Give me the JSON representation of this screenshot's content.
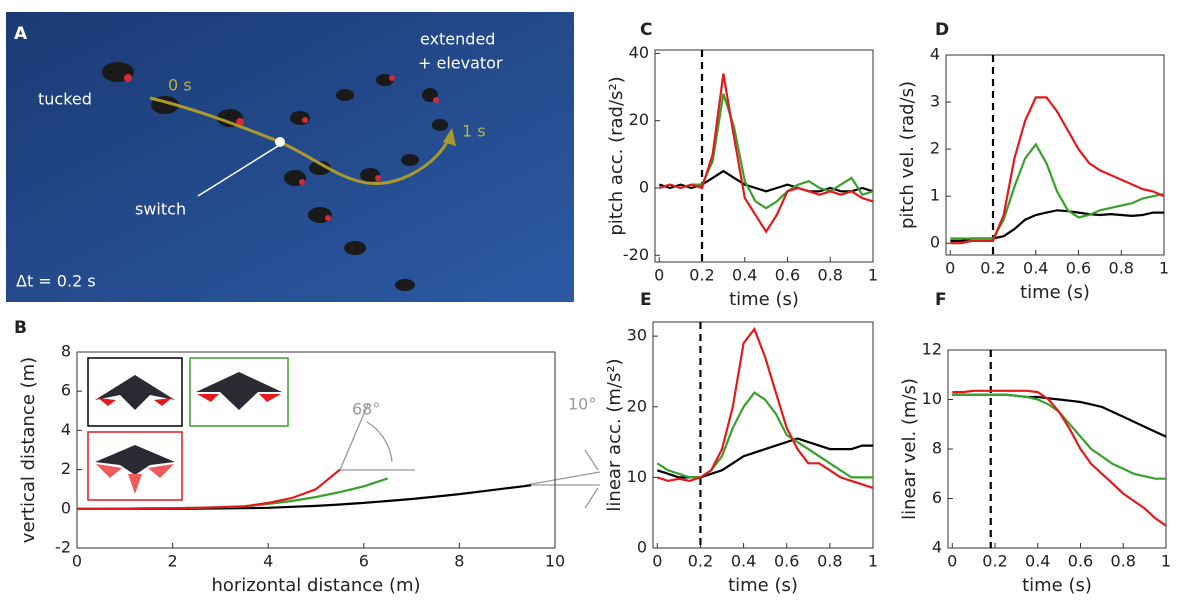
{
  "photo": {
    "label": "A",
    "tucked": "tucked",
    "start": "0 s",
    "end": "1 s",
    "extended": [
      "extended",
      "+ elevator"
    ],
    "switch": "switch",
    "interval": "Δt = 0.2 s"
  },
  "chart_data": [
    {
      "type": "line",
      "label": "B",
      "xlabel": "horizontal distance (m)",
      "ylabel": "vertical distance (m)",
      "x": [
        0,
        0.5,
        1,
        1.5,
        2,
        2.5,
        3,
        3.5,
        4,
        4.5,
        5,
        5.5,
        6,
        6.5,
        7,
        7.5,
        8,
        8.5,
        9,
        9.5
      ],
      "series": [
        {
          "color": "#000000",
          "values": [
            0,
            0,
            0,
            0,
            0,
            0.01,
            0.02,
            0.03,
            0.05,
            0.1,
            0.15,
            0.22,
            0.3,
            0.4,
            0.5,
            0.62,
            0.75,
            0.9,
            1.05,
            1.2
          ]
        },
        {
          "color": "#3aa02c",
          "values": [
            0,
            0,
            0.01,
            0.02,
            0.03,
            0.05,
            0.08,
            0.12,
            0.25,
            0.4,
            0.6,
            0.85,
            1.15,
            1.55,
            null,
            null,
            null,
            null,
            null,
            null
          ]
        },
        {
          "color": "#e31a1c",
          "values": [
            0,
            0,
            0.01,
            0.02,
            0.03,
            0.05,
            0.08,
            0.12,
            0.3,
            0.55,
            1.0,
            2.0,
            null,
            null,
            null,
            null,
            null,
            null,
            null,
            null
          ]
        }
      ],
      "xlim": [
        0,
        10
      ],
      "xticks": [
        0,
        2,
        4,
        6,
        8,
        10
      ],
      "ylim": [
        -2,
        8
      ],
      "yticks": [
        -2,
        0,
        2,
        4,
        6,
        8
      ],
      "annotations": [
        "68°",
        "10°"
      ]
    },
    {
      "type": "line",
      "label": "C",
      "xlabel": "time (s)",
      "ylabel": "pitch acc. (rad/s²)",
      "x": [
        0,
        0.05,
        0.1,
        0.15,
        0.2,
        0.25,
        0.3,
        0.35,
        0.4,
        0.45,
        0.5,
        0.55,
        0.6,
        0.65,
        0.7,
        0.75,
        0.8,
        0.85,
        0.9,
        0.95,
        1
      ],
      "series": [
        {
          "color": "#000000",
          "values": [
            1,
            0,
            1,
            0,
            1,
            3,
            5,
            3,
            1,
            0,
            -1,
            0,
            1,
            0,
            -1,
            -1,
            0,
            -1,
            -1,
            0,
            -1
          ]
        },
        {
          "color": "#3aa02c",
          "values": [
            0,
            1,
            0,
            1,
            1,
            8,
            28,
            18,
            2,
            -4,
            -6,
            -4,
            -1,
            1,
            2,
            0,
            -1,
            1,
            3,
            -2,
            -1
          ]
        },
        {
          "color": "#e31a1c",
          "values": [
            0,
            1,
            0,
            1,
            0,
            10,
            34,
            15,
            -3,
            -8,
            -13,
            -8,
            -1,
            0,
            -1,
            -2,
            -1,
            -2,
            -1,
            -3,
            -4
          ]
        }
      ],
      "xlim": [
        -0.02,
        1
      ],
      "xticks": [
        0,
        0.2,
        0.4,
        0.6,
        0.8,
        1
      ],
      "ylim": [
        -22,
        41
      ],
      "yticks": [
        -20,
        0,
        20,
        40
      ],
      "vline": 0.2
    },
    {
      "type": "line",
      "label": "D",
      "xlabel": "time (s)",
      "ylabel": "pitch vel.  (rad/s)",
      "x": [
        0,
        0.05,
        0.1,
        0.15,
        0.2,
        0.25,
        0.3,
        0.35,
        0.4,
        0.45,
        0.5,
        0.55,
        0.6,
        0.65,
        0.7,
        0.75,
        0.8,
        0.85,
        0.9,
        0.95,
        1
      ],
      "series": [
        {
          "color": "#000000",
          "values": [
            0.05,
            0.05,
            0.1,
            0.1,
            0.1,
            0.15,
            0.3,
            0.5,
            0.6,
            0.65,
            0.7,
            0.68,
            0.65,
            0.62,
            0.6,
            0.62,
            0.6,
            0.58,
            0.6,
            0.65,
            0.65
          ]
        },
        {
          "color": "#3aa02c",
          "values": [
            0.1,
            0.1,
            0.1,
            0.1,
            0.1,
            0.5,
            1.2,
            1.8,
            2.1,
            1.7,
            1.1,
            0.7,
            0.55,
            0.6,
            0.7,
            0.75,
            0.8,
            0.85,
            0.95,
            1.0,
            1.05
          ]
        },
        {
          "color": "#e31a1c",
          "values": [
            0,
            0,
            0.05,
            0.05,
            0.05,
            0.6,
            1.8,
            2.6,
            3.1,
            3.1,
            2.8,
            2.4,
            2.0,
            1.7,
            1.55,
            1.45,
            1.35,
            1.25,
            1.15,
            1.1,
            1.0
          ]
        }
      ],
      "xlim": [
        -0.02,
        1
      ],
      "xticks": [
        0,
        0.2,
        0.4,
        0.6,
        0.8,
        1
      ],
      "ylim": [
        -0.25,
        4
      ],
      "yticks": [
        0,
        1,
        2,
        3,
        4
      ],
      "vline": 0.2
    },
    {
      "type": "line",
      "label": "E",
      "xlabel": "time (s)",
      "ylabel": "linear acc. (m/s²)",
      "x": [
        0,
        0.05,
        0.1,
        0.15,
        0.2,
        0.25,
        0.3,
        0.35,
        0.4,
        0.45,
        0.5,
        0.55,
        0.6,
        0.65,
        0.7,
        0.75,
        0.8,
        0.85,
        0.9,
        0.95,
        1
      ],
      "series": [
        {
          "color": "#000000",
          "values": [
            11,
            10.5,
            10,
            10,
            10,
            10.5,
            11,
            12,
            13,
            13.5,
            14,
            14.5,
            15,
            15.5,
            15,
            14.5,
            14,
            14,
            14,
            14.5,
            14.5
          ]
        },
        {
          "color": "#3aa02c",
          "values": [
            12,
            11,
            10.5,
            10,
            10,
            11,
            13,
            17,
            20,
            22,
            21,
            19,
            16,
            15,
            14,
            13,
            12,
            11,
            10,
            10,
            10
          ]
        },
        {
          "color": "#e31a1c",
          "values": [
            10,
            9.5,
            9.8,
            9.5,
            10,
            11,
            14,
            20,
            29,
            31,
            27,
            22,
            17,
            14,
            12,
            12,
            11,
            10,
            9.5,
            9,
            8.5
          ]
        }
      ],
      "xlim": [
        -0.02,
        1
      ],
      "xticks": [
        0,
        0.2,
        0.4,
        0.6,
        0.8,
        1
      ],
      "ylim": [
        0,
        32
      ],
      "yticks": [
        0,
        10,
        20,
        30
      ],
      "vline": 0.2
    },
    {
      "type": "line",
      "label": "F",
      "xlabel": "time (s)",
      "ylabel": "linear vel. (m/s)",
      "x": [
        0,
        0.05,
        0.1,
        0.15,
        0.2,
        0.25,
        0.3,
        0.35,
        0.4,
        0.45,
        0.5,
        0.55,
        0.6,
        0.65,
        0.7,
        0.75,
        0.8,
        0.85,
        0.9,
        0.95,
        1
      ],
      "series": [
        {
          "color": "#000000",
          "values": [
            10.2,
            10.2,
            10.2,
            10.2,
            10.2,
            10.2,
            10.15,
            10.1,
            10.1,
            10.05,
            10.0,
            9.95,
            9.9,
            9.8,
            9.7,
            9.5,
            9.3,
            9.1,
            8.9,
            8.7,
            8.5
          ]
        },
        {
          "color": "#3aa02c",
          "values": [
            10.2,
            10.2,
            10.2,
            10.2,
            10.2,
            10.2,
            10.15,
            10.1,
            10.0,
            9.8,
            9.5,
            9.0,
            8.5,
            8.0,
            7.7,
            7.4,
            7.2,
            7.0,
            6.9,
            6.8,
            6.8
          ]
        },
        {
          "color": "#e31a1c",
          "values": [
            10.3,
            10.3,
            10.35,
            10.35,
            10.35,
            10.35,
            10.35,
            10.35,
            10.3,
            10.0,
            9.5,
            8.8,
            8.0,
            7.4,
            7.0,
            6.6,
            6.2,
            5.9,
            5.6,
            5.2,
            4.9
          ]
        }
      ],
      "xlim": [
        -0.02,
        1
      ],
      "xticks": [
        0,
        0.2,
        0.4,
        0.6,
        0.8,
        1
      ],
      "ylim": [
        4,
        12
      ],
      "yticks": [
        4,
        6,
        8,
        10,
        12
      ],
      "vline": 0.18
    }
  ]
}
